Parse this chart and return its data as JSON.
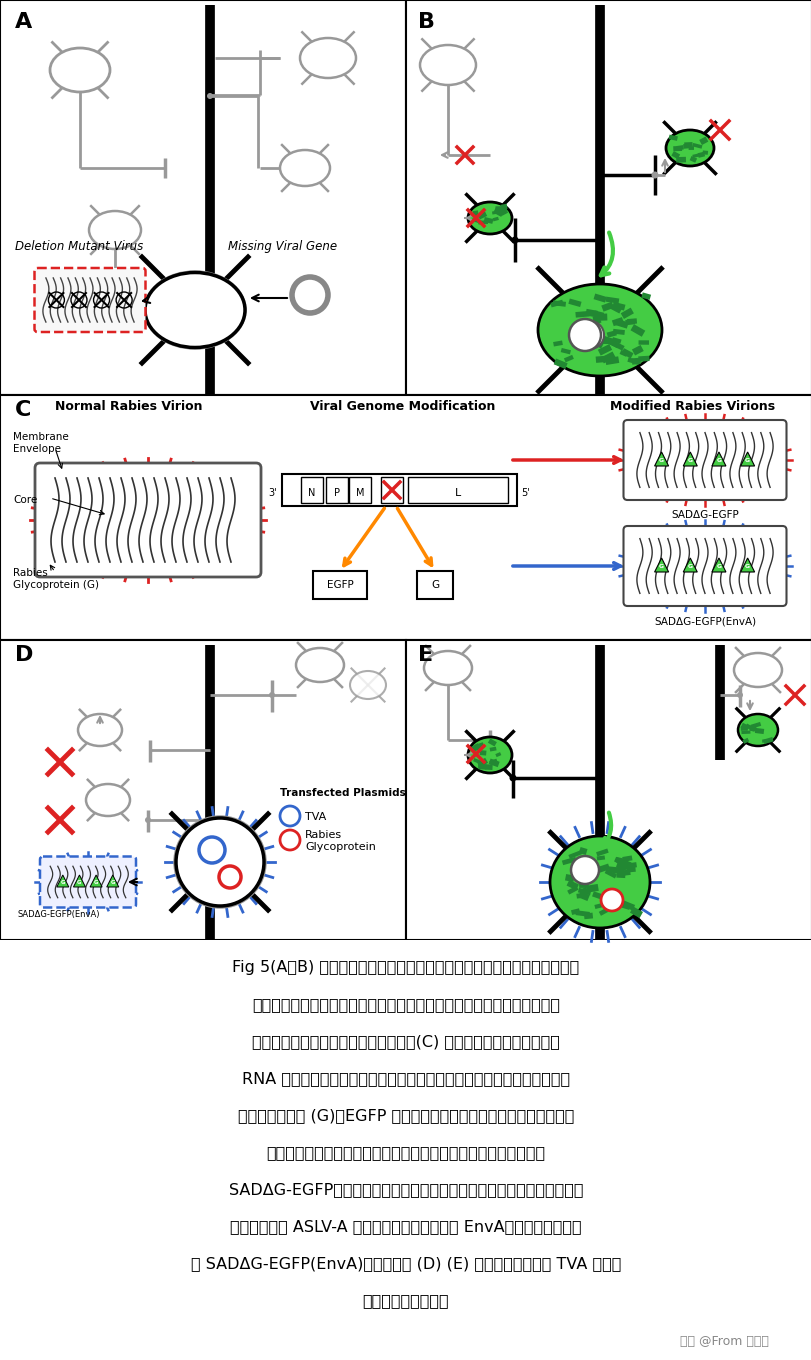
{
  "bg_color": "#ffffff",
  "panel_labels": [
    "A",
    "B",
    "C",
    "D",
    "E"
  ],
  "deletion_mutant_virus": "Deletion Mutant Virus",
  "missing_viral_gene": "Missing Viral Gene",
  "normal_rabies_virion": "Normal Rabies Virion",
  "viral_genome_modification": "Viral Genome Modification",
  "modified_rabies_virions": "Modified Rabies Virions",
  "membrane_envelope": "Membrane\nEnvelope",
  "core": "Core",
  "rabies_glycoprotein": "Rabies\nGlycoprotein (G)",
  "sad_egfp": "SADΔG-EGFP",
  "sad_egfp_enva": "SADΔG-EGFP(EnvA)",
  "transfected_plasmids": "Transfected Plasmids",
  "tva_label": "TVA",
  "rabies_glycoprotein_label": "Rabies\nGlycoprotein",
  "caption_lines": [
    "Fig 5(A、B) 缺失突变体缺失了跨突触相关和病毒基因，将跨突触的蛋白导",
    "入起始的细胞中，可以使得病毒传播至前一级神经元，而上级神经元中不",
    "表达这种基因，因此不能继续逆向传播(C) 狂犬病毒粒子。病毒核心由",
    "RNA 基因组和相关蛋白组成，并被宿主细胞衍生的膜包围，其中嵌入了狂",
    "犬病病毒糖蛋白 (G)。EGFP 基因取代了病毒基因组中的糖蛋白基因（中",
    "心）。可以制作这种病毒的版本，其中包含其天然糖蛋白（指定为",
    "SADΔG-EGFP，右上角）或一些其他病毒的糖蛋白。在这项研究中，狂犬",
    "病毒是用来自 ASLV-A 的糖蛋白假型化的，称为 EnvA，这种病毒被命名",
    "为 SADΔG-EGFP(EnvA)（右下）。 (D) (E) 按照这些步骤，对 TVA 表达细",
    "胞进行特异性感染；"
  ],
  "watermark": "知乎 @From 零渡雨",
  "gray": "#999999",
  "darkgray": "#555555",
  "black": "#000000",
  "green": "#44cc44",
  "darkgreen": "#228833",
  "red": "#dd2222",
  "blue": "#3366cc",
  "orange": "#ff8800"
}
